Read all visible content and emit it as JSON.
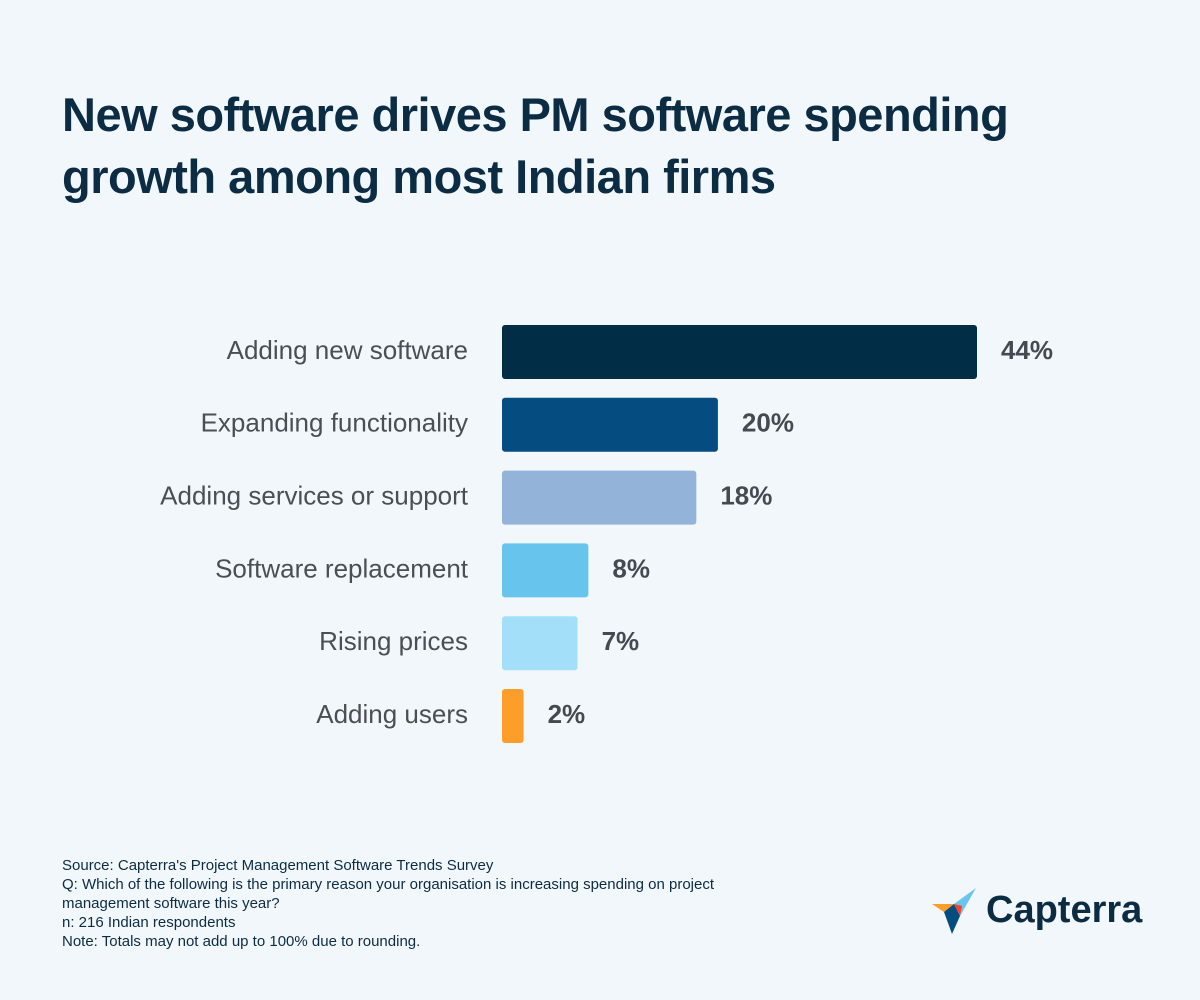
{
  "chart_data": {
    "type": "bar",
    "orientation": "horizontal",
    "title": "New software drives PM software spending growth among most Indian firms",
    "categories": [
      "Adding new software",
      "Expanding functionality",
      "Adding services or support",
      "Software replacement",
      "Rising prices",
      "Adding users"
    ],
    "values": [
      44,
      20,
      18,
      8,
      7,
      2
    ],
    "value_labels": [
      "44%",
      "20%",
      "18%",
      "8%",
      "7%",
      "2%"
    ],
    "colors": [
      "#022d47",
      "#054c80",
      "#94b3d9",
      "#67c5ed",
      "#a3dff9",
      "#ff9d2a"
    ]
  },
  "notes": [
    "Source: Capterra's Project Management Software Trends Survey",
    "Q: Which of the following is the primary reason your organisation is increasing spending on project management software this year?",
    "n: 216 Indian respondents",
    "Note: Totals may not add up to 100% due to rounding."
  ],
  "logo": "Capterra"
}
